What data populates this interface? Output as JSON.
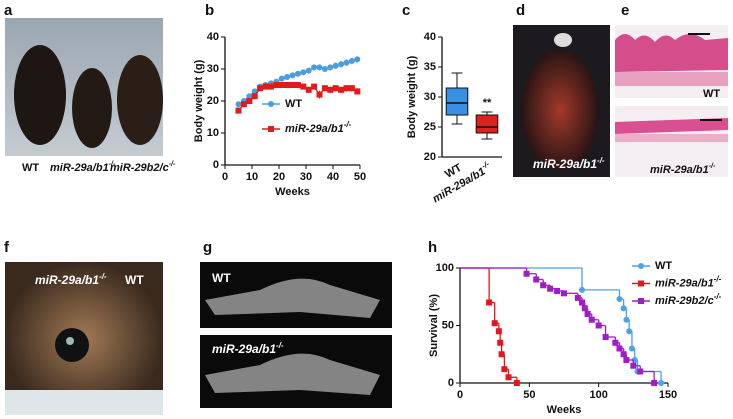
{
  "panels": [
    "a",
    "b",
    "c",
    "d",
    "e",
    "f",
    "g",
    "h"
  ],
  "photo_labels": {
    "a": [
      {
        "text": "WT"
      },
      {
        "text": "miR-29a/b1",
        "sup": "-/-"
      },
      {
        "text": "miR-29b2/c",
        "sup": "-/-"
      }
    ],
    "d": {
      "text": "miR-29a/b1",
      "sup": "-/-"
    },
    "e": [
      {
        "text": "WT"
      },
      {
        "text": "miR-29a/b1",
        "sup": "-/-"
      }
    ],
    "f": [
      {
        "text": "miR-29a/b1",
        "sup": "-/-"
      },
      {
        "text": "WT"
      }
    ],
    "g": [
      {
        "text": "WT"
      },
      {
        "text": "miR-29a/b1",
        "sup": "-/-"
      }
    ]
  },
  "chart_data": [
    {
      "type": "line",
      "xlabel": "Weeks",
      "ylabel": "Body weight (g)",
      "xlim": [
        0,
        50
      ],
      "xticks": [
        0,
        10,
        20,
        30,
        40,
        50
      ],
      "ylim": [
        0,
        40
      ],
      "yticks": [
        0,
        10,
        20,
        30,
        40
      ],
      "x": [
        5,
        7,
        9,
        11,
        13,
        15,
        17,
        19,
        21,
        23,
        25,
        27,
        29,
        31,
        33,
        35,
        37,
        39,
        41,
        43,
        45,
        47,
        49
      ],
      "series": [
        {
          "name": {
            "text": "WT"
          },
          "color": "#4a9de0",
          "values": [
            19,
            20,
            21.5,
            23,
            24.5,
            25,
            25.5,
            26,
            27,
            27.5,
            28,
            28.5,
            29,
            29.5,
            30.5,
            30.5,
            30,
            30.5,
            31,
            31.5,
            32,
            32.5,
            33
          ],
          "errors": [
            0.5,
            0.5,
            0.6,
            0.6,
            0.6,
            0.6,
            0.6,
            0.7,
            0.7,
            0.7,
            0.8,
            0.8,
            0.8,
            0.8,
            0.9,
            0.9,
            0.9,
            0.9,
            1,
            1,
            1,
            1,
            1
          ]
        },
        {
          "name": {
            "text": "miR-29a/b1",
            "sup": "-/-"
          },
          "color": "#e31a1c",
          "values": [
            17,
            19,
            20,
            21.5,
            24,
            24.5,
            24.5,
            25,
            25,
            25,
            25,
            25,
            24.5,
            23.5,
            24.5,
            22,
            24,
            23.5,
            24,
            23.5,
            24,
            24,
            23
          ],
          "errors": [
            0.5,
            0.6,
            0.6,
            0.6,
            0.7,
            0.7,
            0.7,
            0.7,
            0.8,
            0.8,
            0.8,
            0.8,
            0.9,
            1,
            0.9,
            1.2,
            1,
            1,
            1,
            1,
            1,
            1,
            1
          ]
        }
      ]
    },
    {
      "type": "box",
      "ylabel": "Body weight (g)",
      "ylim": [
        20,
        40
      ],
      "yticks": [
        20,
        25,
        30,
        35,
        40
      ],
      "annotation": "**",
      "categories": [
        {
          "text": "WT"
        },
        {
          "text": "miR-29a/b1",
          "sup": "-/-"
        }
      ],
      "series": [
        {
          "color": "#3a8ee6",
          "min": 25.5,
          "q1": 27,
          "median": 29,
          "q3": 31.5,
          "max": 34
        },
        {
          "color": "#e02020",
          "min": 23,
          "q1": 24,
          "median": 25,
          "q3": 27,
          "max": 27.5
        }
      ]
    },
    {
      "type": "survival",
      "xlabel": "Weeks",
      "ylabel": "Survival (%)",
      "xlim": [
        0,
        150
      ],
      "xticks": [
        0,
        50,
        100,
        150
      ],
      "ylim": [
        0,
        100
      ],
      "yticks": [
        0,
        50,
        100
      ],
      "series": [
        {
          "name": {
            "text": "WT"
          },
          "color": "#4aa3e8",
          "x": [
            0,
            88,
            115,
            118,
            120,
            122,
            124,
            126,
            128,
            145
          ],
          "values": [
            100,
            81,
            73,
            65,
            55,
            45,
            30,
            20,
            10,
            0
          ]
        },
        {
          "name": {
            "text": "miR-29a/b1",
            "sup": "-/-"
          },
          "color": "#e8141c",
          "x": [
            0,
            21,
            25,
            28,
            29,
            30,
            32,
            35,
            41
          ],
          "values": [
            100,
            70,
            52,
            45,
            35,
            25,
            12,
            5,
            0
          ]
        },
        {
          "name": {
            "text": "miR-29b2/c",
            "sup": "-/-"
          },
          "color": "#a21cc4",
          "x": [
            0,
            48,
            55,
            60,
            65,
            70,
            75,
            85,
            88,
            90,
            92,
            95,
            100,
            105,
            112,
            115,
            118,
            120,
            125,
            130,
            140
          ],
          "values": [
            100,
            95,
            90,
            85,
            82,
            80,
            78,
            74,
            70,
            65,
            60,
            55,
            50,
            40,
            35,
            30,
            25,
            20,
            15,
            10,
            0
          ]
        }
      ]
    }
  ]
}
